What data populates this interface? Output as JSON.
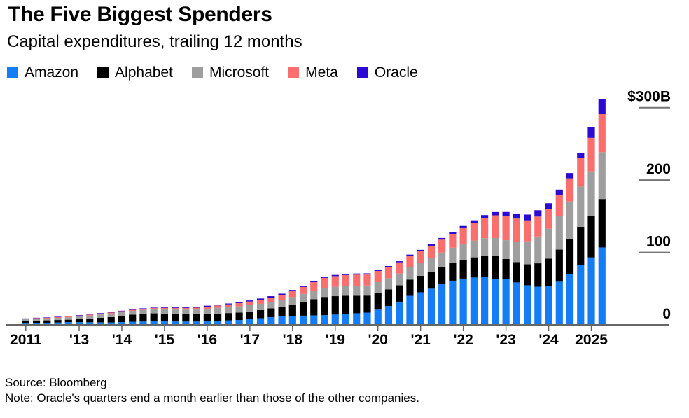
{
  "header": {
    "title": "The Five Biggest Spenders",
    "subtitle": "Capital expenditures, trailing 12 months"
  },
  "legend": [
    {
      "label": "Amazon",
      "color": "#147df5"
    },
    {
      "label": "Alphabet",
      "color": "#000000"
    },
    {
      "label": "Microsoft",
      "color": "#9e9e9e"
    },
    {
      "label": "Meta",
      "color": "#fa6e6e"
    },
    {
      "label": "Oracle",
      "color": "#2d0ad4"
    }
  ],
  "chart_data": {
    "type": "bar",
    "stacked": true,
    "title": "The Five Biggest Spenders",
    "subtitle": "Capital expenditures, trailing 12 months",
    "unit": "USD billions, trailing 12 months",
    "x": [
      "2011 Q4",
      "2012 Q1",
      "2012 Q2",
      "2012 Q3",
      "2012 Q4",
      "2013 Q1",
      "2013 Q2",
      "2013 Q3",
      "2013 Q4",
      "2014 Q1",
      "2014 Q2",
      "2014 Q3",
      "2014 Q4",
      "2015 Q1",
      "2015 Q2",
      "2015 Q3",
      "2015 Q4",
      "2016 Q1",
      "2016 Q2",
      "2016 Q3",
      "2016 Q4",
      "2017 Q1",
      "2017 Q2",
      "2017 Q3",
      "2017 Q4",
      "2018 Q1",
      "2018 Q2",
      "2018 Q3",
      "2018 Q4",
      "2019 Q1",
      "2019 Q2",
      "2019 Q3",
      "2019 Q4",
      "2020 Q1",
      "2020 Q2",
      "2020 Q3",
      "2020 Q4",
      "2021 Q1",
      "2021 Q2",
      "2021 Q3",
      "2021 Q4",
      "2022 Q1",
      "2022 Q2",
      "2022 Q3",
      "2022 Q4",
      "2023 Q1",
      "2023 Q2",
      "2023 Q3",
      "2023 Q4",
      "2024 Q1",
      "2024 Q2",
      "2024 Q3",
      "2024 Q4",
      "2025 Q1",
      "2025 Q2"
    ],
    "series": [
      {
        "name": "Amazon",
        "color": "#147df5",
        "values": [
          1.8,
          2.3,
          2.8,
          3.3,
          3.8,
          3.7,
          3.6,
          3.5,
          3.4,
          3.8,
          4.2,
          4.6,
          4.9,
          4.8,
          4.7,
          4.6,
          4.6,
          5.1,
          5.6,
          6.2,
          6.7,
          7.9,
          9.2,
          10.6,
          12.0,
          12.3,
          12.7,
          13.1,
          13.4,
          14.2,
          15.1,
          16.0,
          16.9,
          21.0,
          26.0,
          32.0,
          40.1,
          45.0,
          50.0,
          56.0,
          61.0,
          63.9,
          65.4,
          66.0,
          63.6,
          62.9,
          58.6,
          54.7,
          52.7,
          53.5,
          59.6,
          69.8,
          83.0,
          93.1,
          106.9
        ]
      },
      {
        "name": "Alphabet",
        "color": "#000000",
        "values": [
          3.4,
          3.5,
          3.4,
          3.4,
          3.3,
          4.2,
          5.1,
          6.3,
          7.4,
          8.6,
          9.8,
          10.6,
          11.0,
          10.8,
          10.4,
          10.1,
          9.9,
          9.9,
          10.0,
          10.1,
          10.2,
          10.6,
          11.2,
          12.1,
          13.2,
          15.9,
          19.0,
          22.4,
          25.1,
          25.4,
          25.0,
          24.2,
          23.5,
          23.3,
          23.0,
          22.6,
          22.3,
          22.7,
          23.2,
          23.9,
          24.6,
          26.2,
          27.8,
          29.7,
          31.5,
          28.0,
          28.1,
          28.9,
          32.3,
          38.0,
          44.3,
          49.3,
          52.5,
          57.7,
          67.0
        ]
      },
      {
        "name": "Microsoft",
        "color": "#9e9e9e",
        "values": [
          2.6,
          2.6,
          2.6,
          2.9,
          3.3,
          3.7,
          4.2,
          4.5,
          4.8,
          5.1,
          5.3,
          5.5,
          5.7,
          5.9,
          6.1,
          6.4,
          6.7,
          7.2,
          7.9,
          8.1,
          8.6,
          8.7,
          8.7,
          8.9,
          9.2,
          10.1,
          11.1,
          11.7,
          12.5,
          13.0,
          13.4,
          13.7,
          14.0,
          14.7,
          15.4,
          16.3,
          17.3,
          18.1,
          19.2,
          20.0,
          20.9,
          22.1,
          23.2,
          23.9,
          24.8,
          26.0,
          28.1,
          31.7,
          37.0,
          41.3,
          46.3,
          51.3,
          55.5,
          61.3,
          64.6
        ]
      },
      {
        "name": "Meta",
        "color": "#fa6e6e",
        "values": [
          0.6,
          0.9,
          1.1,
          1.2,
          1.2,
          1.3,
          1.3,
          1.4,
          1.4,
          1.4,
          1.5,
          1.6,
          1.8,
          2.0,
          2.2,
          2.3,
          2.5,
          2.9,
          3.3,
          3.9,
          4.5,
          5.0,
          5.5,
          6.1,
          6.7,
          8.0,
          9.5,
          11.7,
          13.9,
          14.7,
          15.3,
          15.4,
          15.1,
          15.4,
          15.2,
          15.4,
          15.7,
          16.0,
          16.7,
          17.8,
          19.2,
          21.5,
          24.5,
          28.0,
          31.4,
          33.2,
          32.0,
          29.0,
          27.6,
          27.2,
          29.3,
          32.0,
          39.2,
          46.2,
          52.5
        ]
      },
      {
        "name": "Oracle",
        "color": "#2d0ad4",
        "values": [
          0.45,
          0.5,
          0.55,
          0.6,
          0.6,
          0.65,
          0.65,
          0.65,
          0.65,
          0.6,
          0.6,
          0.6,
          0.6,
          0.8,
          1.0,
          1.2,
          1.4,
          1.35,
          1.25,
          1.2,
          1.2,
          1.5,
          1.8,
          1.9,
          2.0,
          1.9,
          1.8,
          1.75,
          1.7,
          1.65,
          1.6,
          1.6,
          1.6,
          1.6,
          1.6,
          1.6,
          1.6,
          1.8,
          2.1,
          2.3,
          2.1,
          2.9,
          3.5,
          4.0,
          4.5,
          5.8,
          7.0,
          8.0,
          8.7,
          8.0,
          7.3,
          7.3,
          7.2,
          15.0,
          21.3
        ]
      }
    ],
    "y_axis": {
      "min": 0,
      "max": 300,
      "ticks": [
        {
          "value": 0,
          "label": "0"
        },
        {
          "value": 100,
          "label": "100"
        },
        {
          "value": 200,
          "label": "200"
        },
        {
          "value": 300,
          "label": "$300B"
        }
      ],
      "side": "right",
      "grid": false
    },
    "x_axis": {
      "tick_labels": [
        "2011",
        "'13",
        "'14",
        "'15",
        "'16",
        "'17",
        "'18",
        "'19",
        "'20",
        "'21",
        "'22",
        "'23",
        "'24",
        "2025"
      ],
      "tick_indices": [
        0,
        5,
        9,
        13,
        17,
        21,
        25,
        29,
        33,
        37,
        41,
        45,
        49,
        53
      ]
    },
    "legend_position": "top"
  },
  "footer": {
    "source": "Source: Bloomberg",
    "note": "Note: Oracle's quarters end a month earlier than those of the other companies."
  }
}
